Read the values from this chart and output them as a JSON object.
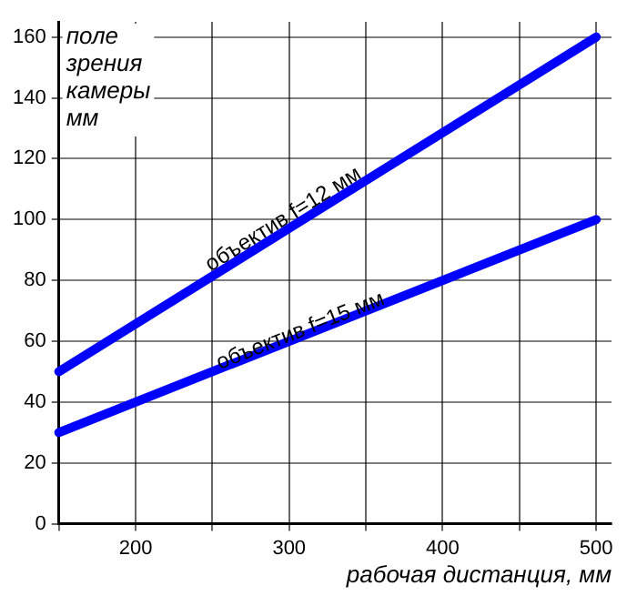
{
  "chart_data": {
    "type": "line",
    "ylabel": "поле\nзрения\nкамеры\nмм",
    "xlabel": "рабочая дистанция, мм",
    "series": [
      {
        "values": [
          50,
          160
        ],
        "color": "#0000ff"
      },
      {
        "values": [
          30,
          100
        ],
        "color": "#0000ff"
      }
    ],
    "x": [
      150,
      500
    ],
    "xlim": [
      150,
      510
    ],
    "xticks": [
      {
        "value": 150,
        "label": null
      },
      200,
      {
        "value": 250,
        "label": null
      },
      300,
      {
        "value": 350,
        "label": null
      },
      400,
      {
        "value": 450,
        "label": null
      },
      500
    ],
    "ylim": [
      0,
      165
    ],
    "yticks": [
      0,
      20,
      40,
      60,
      80,
      100,
      120,
      140,
      160
    ],
    "grid": true,
    "legend": false,
    "marker": "none",
    "line_style": "solid",
    "annotations": [
      {
        "text": "объектив f=12 мм",
        "x": 300,
        "y": 97
      },
      {
        "text": "объектив f=15 мм",
        "x": 310,
        "y": 60
      }
    ]
  }
}
